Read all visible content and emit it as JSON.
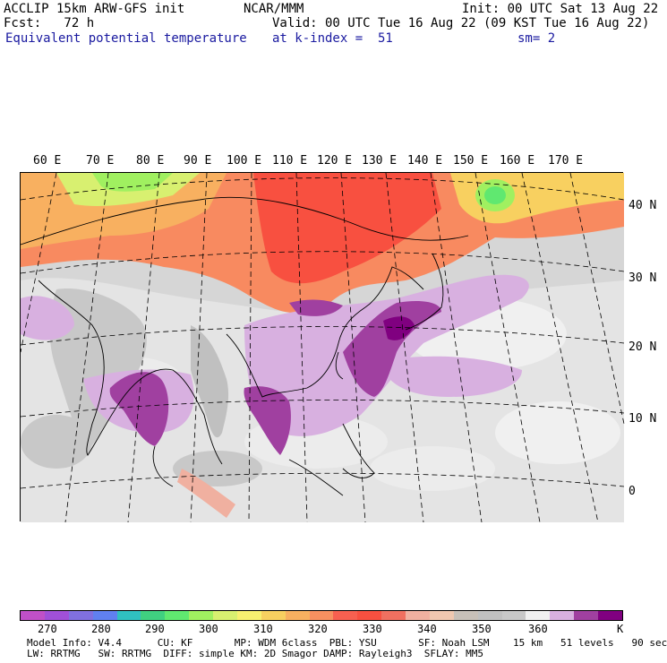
{
  "header": {
    "model": "ACCLIP 15km ARW-GFS init",
    "forecast": "Fcst:   72 h",
    "field": "Equivalent potential temperature",
    "center": "NCAR/MMM",
    "valid": "Valid: 00 UTC Tue 16 Aug 22 (09 KST Tue 16 Aug 22)",
    "level": "at k-index =  51",
    "init": "Init: 00 UTC Sat 13 Aug 22",
    "smooth": "sm= 2"
  },
  "map": {
    "lon_labels": [
      "60 E",
      "70 E",
      "80 E",
      "90 E",
      "100 E",
      "110 E",
      "120 E",
      "130 E",
      "140 E",
      "150 E",
      "160 E",
      "170 E"
    ],
    "lat_labels": [
      "40 N",
      "30 N",
      "20 N",
      "10 N",
      "0"
    ]
  },
  "colorbar": {
    "colors": [
      "#c050c8",
      "#a050d8",
      "#8070e0",
      "#6080f0",
      "#30c0c0",
      "#40d080",
      "#60e870",
      "#a0f060",
      "#d8f070",
      "#f8f070",
      "#f8d060",
      "#f8b060",
      "#f89060",
      "#f86050",
      "#f85040",
      "#f07060",
      "#f0b0a0",
      "#f0c8b0",
      "#c8c0b8",
      "#c0c0c0",
      "#c8c8c8",
      "#f0f0f0",
      "#d8b0e0",
      "#a040a0",
      "#800080"
    ],
    "ticks": [
      "270",
      "280",
      "290",
      "300",
      "310",
      "320",
      "330",
      "340",
      "350",
      "360"
    ],
    "unit": "K"
  },
  "footer": {
    "line1": "Model Info: V4.4      CU: KF       MP: WDM 6class  PBL: YSU       SF: Noah LSM    15 km   51 levels   90 sec",
    "line2": "LW: RRTMG   SW: RRTMG  DIFF: simple KM: 2D Smagor DAMP: Rayleigh3  SFLAY: MM5"
  }
}
